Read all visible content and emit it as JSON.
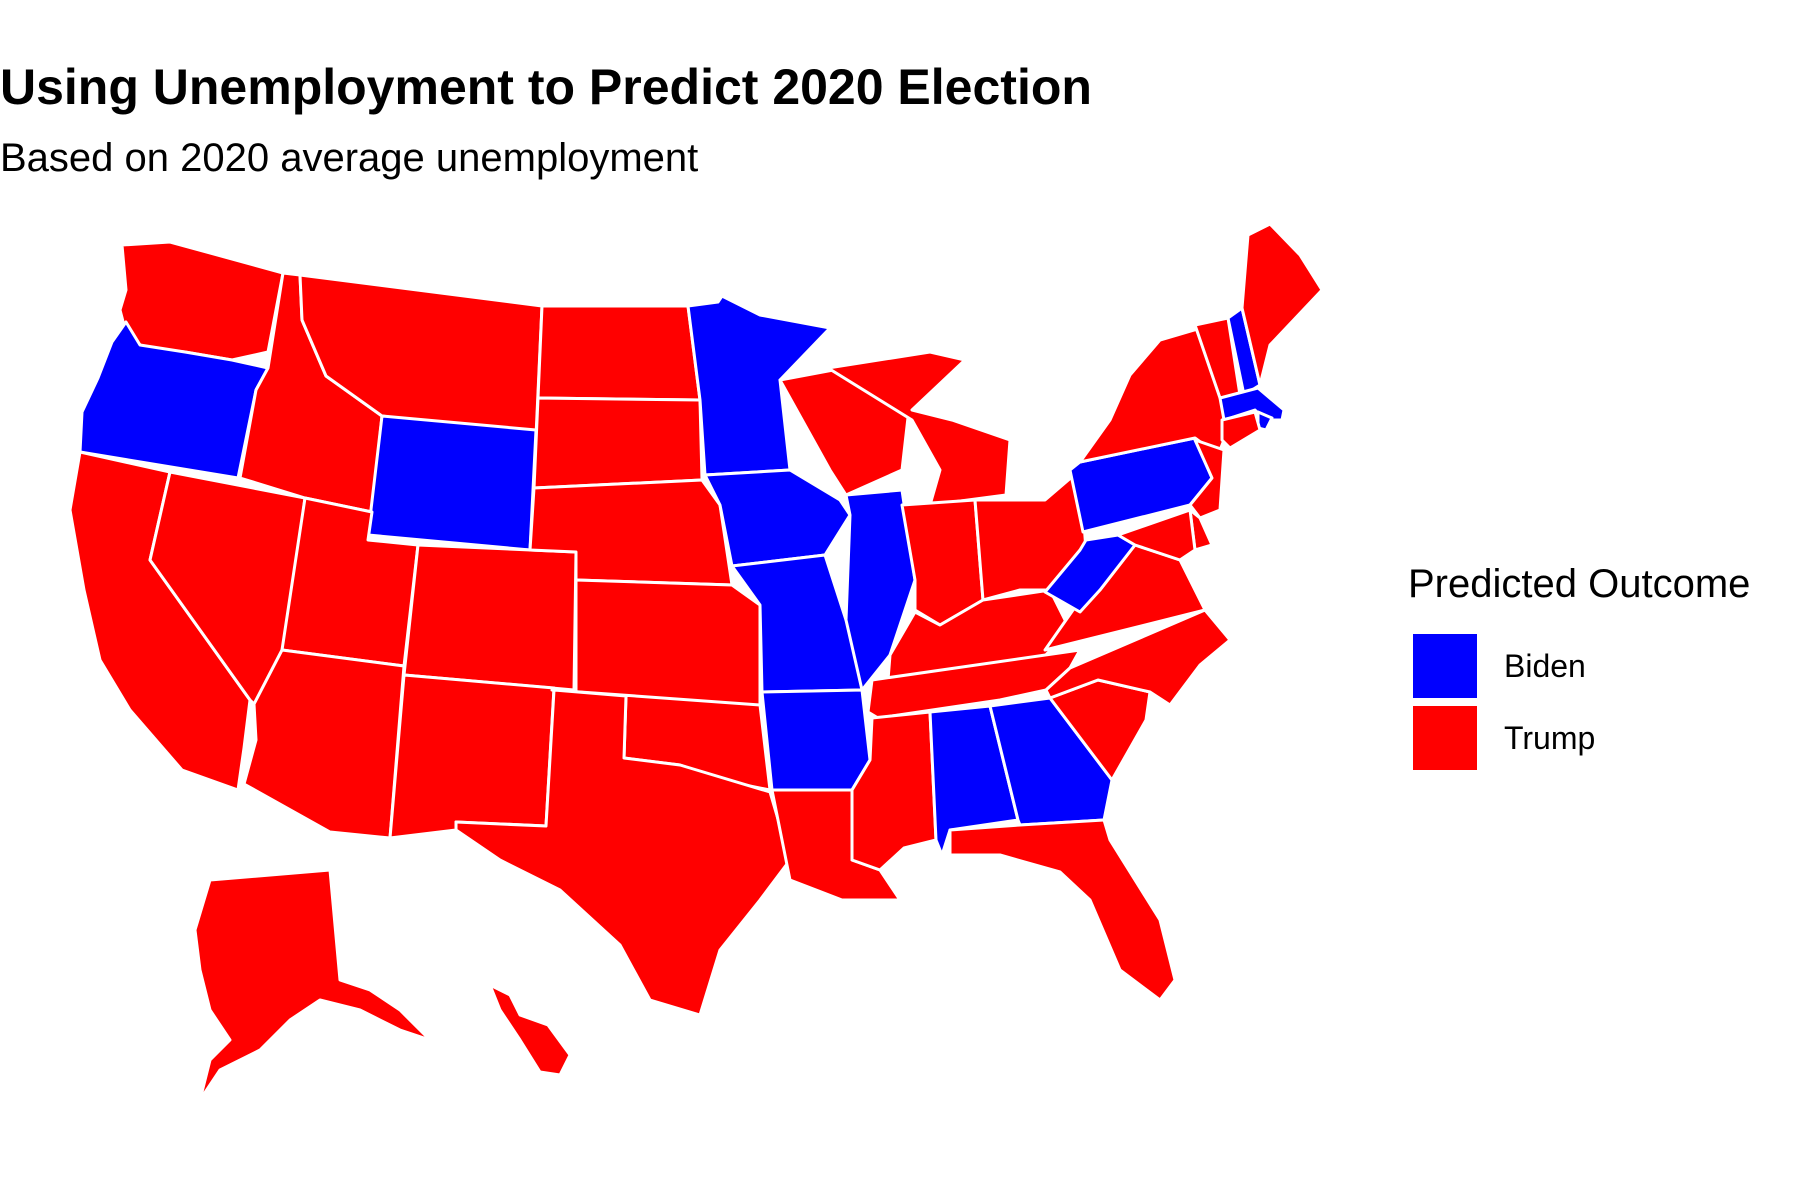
{
  "title": "Using Unemployment to Predict 2020 Election",
  "subtitle": "Based on 2020 average unemployment",
  "legend": {
    "title": "Predicted Outcome",
    "items": [
      {
        "label": "Biden",
        "color": "#0000ff"
      },
      {
        "label": "Trump",
        "color": "#ff0000"
      }
    ]
  },
  "colors": {
    "Biden": "#0000ff",
    "Trump": "#ff0000",
    "border": "#ffffff"
  },
  "states": [
    {
      "name": "WA",
      "outcome": "Trump"
    },
    {
      "name": "OR",
      "outcome": "Biden"
    },
    {
      "name": "CA",
      "outcome": "Trump"
    },
    {
      "name": "NV",
      "outcome": "Trump"
    },
    {
      "name": "ID",
      "outcome": "Trump"
    },
    {
      "name": "MT",
      "outcome": "Trump"
    },
    {
      "name": "WY",
      "outcome": "Biden"
    },
    {
      "name": "UT",
      "outcome": "Trump"
    },
    {
      "name": "AZ",
      "outcome": "Trump"
    },
    {
      "name": "CO",
      "outcome": "Trump"
    },
    {
      "name": "NM",
      "outcome": "Trump"
    },
    {
      "name": "ND",
      "outcome": "Trump"
    },
    {
      "name": "SD",
      "outcome": "Trump"
    },
    {
      "name": "NE",
      "outcome": "Trump"
    },
    {
      "name": "KS",
      "outcome": "Trump"
    },
    {
      "name": "OK",
      "outcome": "Trump"
    },
    {
      "name": "TX",
      "outcome": "Trump"
    },
    {
      "name": "MN",
      "outcome": "Biden"
    },
    {
      "name": "IA",
      "outcome": "Biden"
    },
    {
      "name": "MO",
      "outcome": "Biden"
    },
    {
      "name": "AR",
      "outcome": "Biden"
    },
    {
      "name": "LA",
      "outcome": "Trump"
    },
    {
      "name": "WI",
      "outcome": "Trump"
    },
    {
      "name": "IL",
      "outcome": "Biden"
    },
    {
      "name": "MI",
      "outcome": "Trump"
    },
    {
      "name": "IN",
      "outcome": "Trump"
    },
    {
      "name": "OH",
      "outcome": "Trump"
    },
    {
      "name": "KY",
      "outcome": "Trump"
    },
    {
      "name": "TN",
      "outcome": "Trump"
    },
    {
      "name": "MS",
      "outcome": "Trump"
    },
    {
      "name": "AL",
      "outcome": "Biden"
    },
    {
      "name": "GA",
      "outcome": "Biden"
    },
    {
      "name": "FL",
      "outcome": "Trump"
    },
    {
      "name": "SC",
      "outcome": "Trump"
    },
    {
      "name": "NC",
      "outcome": "Trump"
    },
    {
      "name": "VA",
      "outcome": "Trump"
    },
    {
      "name": "WV",
      "outcome": "Biden"
    },
    {
      "name": "PA",
      "outcome": "Biden"
    },
    {
      "name": "NY",
      "outcome": "Trump"
    },
    {
      "name": "VT",
      "outcome": "Trump"
    },
    {
      "name": "NH",
      "outcome": "Biden"
    },
    {
      "name": "ME",
      "outcome": "Trump"
    },
    {
      "name": "MA",
      "outcome": "Biden"
    },
    {
      "name": "RI",
      "outcome": "Biden"
    },
    {
      "name": "CT",
      "outcome": "Trump"
    },
    {
      "name": "NJ",
      "outcome": "Trump"
    },
    {
      "name": "DE",
      "outcome": "Trump"
    },
    {
      "name": "MD",
      "outcome": "Trump"
    },
    {
      "name": "AK",
      "outcome": "Trump"
    },
    {
      "name": "HI",
      "outcome": "Trump"
    }
  ]
}
